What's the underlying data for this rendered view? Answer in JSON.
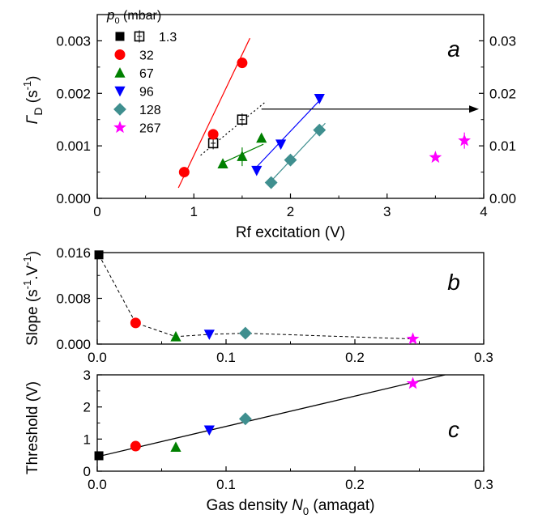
{
  "legend": {
    "title_symbol": "p",
    "title_sub": "0",
    "title_unit": "(mbar)",
    "entries": [
      {
        "label": "1.3",
        "marker": "square",
        "color": "#000000"
      },
      {
        "label": "32",
        "marker": "circle",
        "color": "#ff0000"
      },
      {
        "label": "67",
        "marker": "triangle-up",
        "color": "#008000"
      },
      {
        "label": "96",
        "marker": "triangle-down",
        "color": "#0000ff"
      },
      {
        "label": "128",
        "marker": "diamond",
        "color": "#3f8f8f"
      },
      {
        "label": "267",
        "marker": "star",
        "color": "#ff00ff"
      }
    ]
  },
  "chart_data": [
    {
      "panel": "a",
      "type": "scatter",
      "letter": "a",
      "xlabel": "Rf excitation (V)",
      "ylabel_symbol": "Γ",
      "ylabel_sub": "D",
      "ylabel_unit": "(s",
      "ylabel_exp": "-1",
      "ylabel_close": ")",
      "xlim": [
        0,
        4
      ],
      "ylim": [
        0,
        0.0035
      ],
      "xticks": [
        "0",
        "1",
        "2",
        "3",
        "4"
      ],
      "yticks": [
        "0.000",
        "0.001",
        "0.002",
        "0.003"
      ],
      "y2lim": [
        0,
        0.035
      ],
      "y2ticks": [
        "0.00",
        "0.01",
        "0.02",
        "0.03"
      ],
      "series": [
        {
          "label": "1.3",
          "axis": "right",
          "open": true,
          "points": [
            [
              1.2,
              0.0105
            ],
            [
              1.5,
              0.015
            ]
          ],
          "fit": [
            [
              1.07,
              0.0082
            ],
            [
              1.75,
              0.0185
            ]
          ],
          "fit_style": "dotted"
        },
        {
          "label": "32",
          "points": [
            [
              0.9,
              0.0005
            ],
            [
              1.2,
              0.00122
            ],
            [
              1.5,
              0.00258
            ]
          ],
          "fit": [
            [
              0.84,
              0.0002
            ],
            [
              1.58,
              0.00305
            ]
          ]
        },
        {
          "label": "67",
          "points": [
            [
              1.3,
              0.00066
            ],
            [
              1.5,
              0.0008
            ],
            [
              1.7,
              0.00115
            ]
          ],
          "fit": [
            [
              1.28,
              0.00066
            ],
            [
              1.72,
              0.00103
            ]
          ]
        },
        {
          "label": "96",
          "points": [
            [
              1.65,
              0.00053
            ],
            [
              1.9,
              0.00103
            ],
            [
              2.3,
              0.0019
            ]
          ],
          "fit": [
            [
              1.62,
              0.00054
            ],
            [
              2.33,
              0.00192
            ]
          ]
        },
        {
          "label": "128",
          "points": [
            [
              1.8,
              0.0003
            ],
            [
              2.0,
              0.00073
            ],
            [
              2.3,
              0.0013
            ]
          ],
          "fit": [
            [
              1.78,
              0.00029
            ],
            [
              2.36,
              0.00143
            ]
          ]
        },
        {
          "label": "267",
          "points": [
            [
              3.5,
              0.00078
            ],
            [
              3.8,
              0.0011
            ]
          ]
        }
      ],
      "arrow": {
        "from": [
          1.7,
          0.0017
        ],
        "to": [
          3.95,
          0.0017
        ]
      }
    },
    {
      "panel": "b",
      "type": "scatter",
      "letter": "b",
      "xlabel": "",
      "ylabel": "Slope (s",
      "ylabel_exp1": "-1",
      "ylabel_mid": ".V",
      "ylabel_exp2": "-1",
      "ylabel_close": ")",
      "xlim": [
        0,
        0.3
      ],
      "ylim": [
        0,
        0.016
      ],
      "xticks": [
        "0.0",
        "0.1",
        "0.2",
        "0.3"
      ],
      "yticks": [
        "0.000",
        "0.008",
        "0.016"
      ],
      "line_style": "dashed",
      "points": [
        {
          "label": "1.3",
          "x": 0.0013,
          "y": 0.0156
        },
        {
          "label": "32",
          "x": 0.0298,
          "y": 0.0037
        },
        {
          "label": "67",
          "x": 0.061,
          "y": 0.0013
        },
        {
          "label": "96",
          "x": 0.087,
          "y": 0.0017
        },
        {
          "label": "128",
          "x": 0.115,
          "y": 0.0019
        },
        {
          "label": "267",
          "x": 0.245,
          "y": 0.0009
        }
      ]
    },
    {
      "panel": "c",
      "type": "scatter",
      "letter": "c",
      "xlabel": "Gas density ",
      "xlabel_symbol": "N",
      "xlabel_sub": "0",
      "xlabel_unit": " (amagat)",
      "ylabel": "Threshold (V)",
      "xlim": [
        0,
        0.3
      ],
      "ylim": [
        0,
        3
      ],
      "xticks": [
        "0.0",
        "0.1",
        "0.2",
        "0.3"
      ],
      "yticks": [
        "0",
        "1",
        "2",
        "3"
      ],
      "points": [
        {
          "label": "1.3",
          "x": 0.0013,
          "y": 0.48
        },
        {
          "label": "32",
          "x": 0.0298,
          "y": 0.78
        },
        {
          "label": "67",
          "x": 0.061,
          "y": 0.75
        },
        {
          "label": "96",
          "x": 0.087,
          "y": 1.28
        },
        {
          "label": "128",
          "x": 0.115,
          "y": 1.63
        },
        {
          "label": "267",
          "x": 0.245,
          "y": 2.73
        }
      ],
      "fit": [
        [
          0.0,
          0.45
        ],
        [
          0.27,
          3.0
        ]
      ]
    }
  ]
}
